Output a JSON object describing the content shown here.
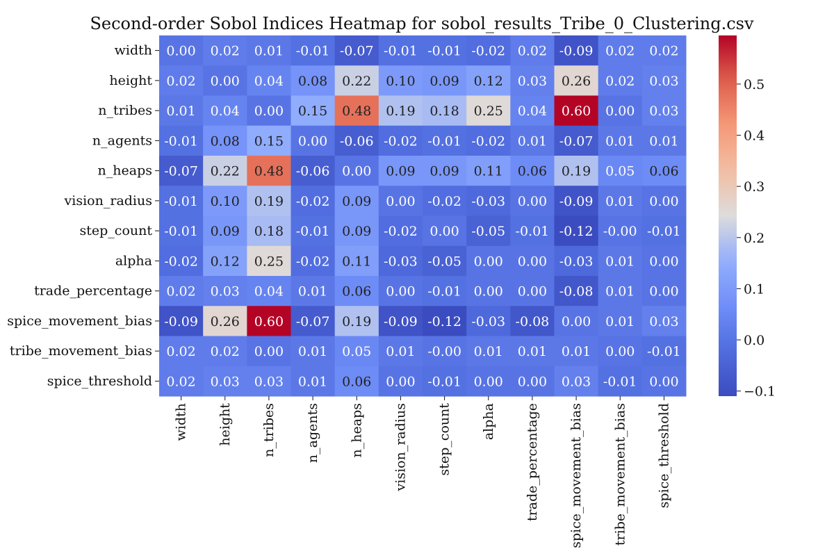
{
  "chart_data": {
    "type": "heatmap",
    "title": "Second-order Sobol Indices Heatmap for sobol_results_Tribe_0_Clustering.csv",
    "colormap": "coolwarm",
    "vmin": -0.11,
    "vmax": 0.595,
    "x_labels": [
      "width",
      "height",
      "n_tribes",
      "n_agents",
      "n_heaps",
      "vision_radius",
      "step_count",
      "alpha",
      "trade_percentage",
      "spice_movement_bias",
      "tribe_movement_bias",
      "spice_threshold"
    ],
    "y_labels": [
      "width",
      "height",
      "n_tribes",
      "n_agents",
      "n_heaps",
      "vision_radius",
      "step_count",
      "alpha",
      "trade_percentage",
      "spice_movement_bias",
      "tribe_movement_bias",
      "spice_threshold"
    ],
    "values": [
      [
        0.0,
        0.02,
        0.01,
        -0.01,
        -0.07,
        -0.01,
        -0.01,
        -0.02,
        0.02,
        -0.09,
        0.02,
        0.02
      ],
      [
        0.02,
        0.0,
        0.04,
        0.08,
        0.22,
        0.1,
        0.09,
        0.12,
        0.03,
        0.26,
        0.02,
        0.03
      ],
      [
        0.01,
        0.04,
        0.0,
        0.15,
        0.48,
        0.19,
        0.18,
        0.25,
        0.04,
        0.6,
        0.0,
        0.03
      ],
      [
        -0.01,
        0.08,
        0.15,
        0.0,
        -0.06,
        -0.02,
        -0.01,
        -0.02,
        0.01,
        -0.07,
        0.01,
        0.01
      ],
      [
        -0.07,
        0.22,
        0.48,
        -0.06,
        0.0,
        0.09,
        0.09,
        0.11,
        0.06,
        0.19,
        0.05,
        0.06
      ],
      [
        -0.01,
        0.1,
        0.19,
        -0.02,
        0.09,
        0.0,
        -0.02,
        -0.03,
        0.0,
        -0.09,
        0.01,
        0.0
      ],
      [
        -0.01,
        0.09,
        0.18,
        -0.01,
        0.09,
        -0.02,
        0.0,
        -0.05,
        -0.01,
        -0.12,
        -0.0,
        -0.01
      ],
      [
        -0.02,
        0.12,
        0.25,
        -0.02,
        0.11,
        -0.03,
        -0.05,
        0.0,
        0.0,
        -0.03,
        0.01,
        0.0
      ],
      [
        0.02,
        0.03,
        0.04,
        0.01,
        0.06,
        0.0,
        -0.01,
        0.0,
        0.0,
        -0.08,
        0.01,
        0.0
      ],
      [
        -0.09,
        0.26,
        0.6,
        -0.07,
        0.19,
        -0.09,
        -0.12,
        -0.03,
        -0.08,
        0.0,
        0.01,
        0.03
      ],
      [
        0.02,
        0.02,
        0.0,
        0.01,
        0.05,
        0.01,
        -0.0,
        0.01,
        0.01,
        0.01,
        0.0,
        -0.01
      ],
      [
        0.02,
        0.03,
        0.03,
        0.01,
        0.06,
        0.0,
        -0.01,
        0.0,
        0.0,
        0.03,
        -0.01,
        0.0
      ]
    ],
    "cell_labels": [
      [
        "0.00",
        "0.02",
        "0.01",
        "-0.01",
        "-0.07",
        "-0.01",
        "-0.01",
        "-0.02",
        "0.02",
        "-0.09",
        "0.02",
        "0.02"
      ],
      [
        "0.02",
        "0.00",
        "0.04",
        "0.08",
        "0.22",
        "0.10",
        "0.09",
        "0.12",
        "0.03",
        "0.26",
        "0.02",
        "0.03"
      ],
      [
        "0.01",
        "0.04",
        "0.00",
        "0.15",
        "0.48",
        "0.19",
        "0.18",
        "0.25",
        "0.04",
        "0.60",
        "0.00",
        "0.03"
      ],
      [
        "-0.01",
        "0.08",
        "0.15",
        "0.00",
        "-0.06",
        "-0.02",
        "-0.01",
        "-0.02",
        "0.01",
        "-0.07",
        "0.01",
        "0.01"
      ],
      [
        "-0.07",
        "0.22",
        "0.48",
        "-0.06",
        "0.00",
        "0.09",
        "0.09",
        "0.11",
        "0.06",
        "0.19",
        "0.05",
        "0.06"
      ],
      [
        "-0.01",
        "0.10",
        "0.19",
        "-0.02",
        "0.09",
        "0.00",
        "-0.02",
        "-0.03",
        "0.00",
        "-0.09",
        "0.01",
        "0.00"
      ],
      [
        "-0.01",
        "0.09",
        "0.18",
        "-0.01",
        "0.09",
        "-0.02",
        "0.00",
        "-0.05",
        "-0.01",
        "-0.12",
        "-0.00",
        "-0.01"
      ],
      [
        "-0.02",
        "0.12",
        "0.25",
        "-0.02",
        "0.11",
        "-0.03",
        "-0.05",
        "0.00",
        "0.00",
        "-0.03",
        "0.01",
        "0.00"
      ],
      [
        "0.02",
        "0.03",
        "0.04",
        "0.01",
        "0.06",
        "0.00",
        "-0.01",
        "0.00",
        "0.00",
        "-0.08",
        "0.01",
        "0.00"
      ],
      [
        "-0.09",
        "0.26",
        "0.60",
        "-0.07",
        "0.19",
        "-0.09",
        "-0.12",
        "-0.03",
        "-0.08",
        "0.00",
        "0.01",
        "0.03"
      ],
      [
        "0.02",
        "0.02",
        "0.00",
        "0.01",
        "0.05",
        "0.01",
        "-0.00",
        "0.01",
        "0.01",
        "0.01",
        "0.00",
        "-0.01"
      ],
      [
        "0.02",
        "0.03",
        "0.03",
        "0.01",
        "0.06",
        "0.00",
        "-0.01",
        "0.00",
        "0.00",
        "0.03",
        "-0.01",
        "0.00"
      ]
    ],
    "colorbar": {
      "ticks": [
        -0.1,
        0.0,
        0.1,
        0.2,
        0.3,
        0.4,
        0.5
      ],
      "tick_labels": [
        "−0.1",
        "0.0",
        "0.1",
        "0.2",
        "0.3",
        "0.4",
        "0.5"
      ]
    }
  }
}
